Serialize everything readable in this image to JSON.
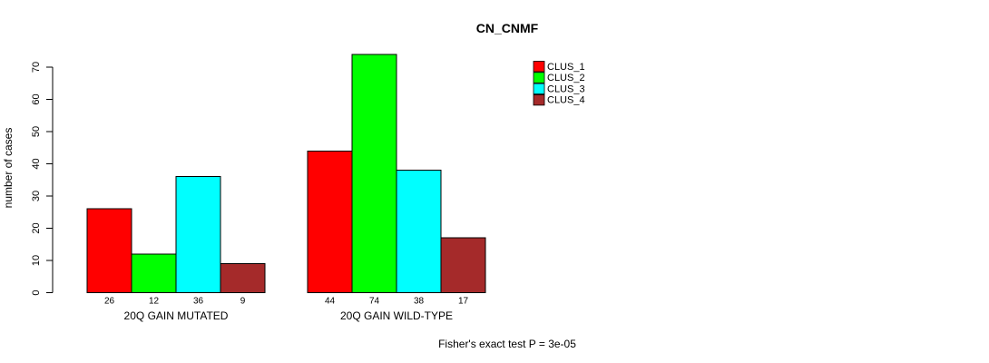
{
  "title": "CN_CNMF",
  "footer": "Fisher's exact test P = 3e-05",
  "chart_data": {
    "type": "bar",
    "title": "CN_CNMF",
    "xlabel": "",
    "ylabel": "number of cases",
    "ylim": [
      0,
      70
    ],
    "yticks": [
      0,
      10,
      20,
      30,
      40,
      50,
      60,
      70
    ],
    "grid": false,
    "legend_position": "top-right",
    "categories": [
      "20Q GAIN MUTATED",
      "20Q GAIN WILD-TYPE"
    ],
    "series": [
      {
        "name": "CLUS_1",
        "color": "#ff0000",
        "values": [
          26,
          44
        ]
      },
      {
        "name": "CLUS_2",
        "color": "#00ff00",
        "values": [
          12,
          74
        ]
      },
      {
        "name": "CLUS_3",
        "color": "#00ffff",
        "values": [
          36,
          38
        ]
      },
      {
        "name": "CLUS_4",
        "color": "#a52a2a",
        "values": [
          9,
          17
        ]
      }
    ],
    "bar_border_color": "#000000",
    "annotation": "Fisher's exact test P = 3e-05"
  }
}
